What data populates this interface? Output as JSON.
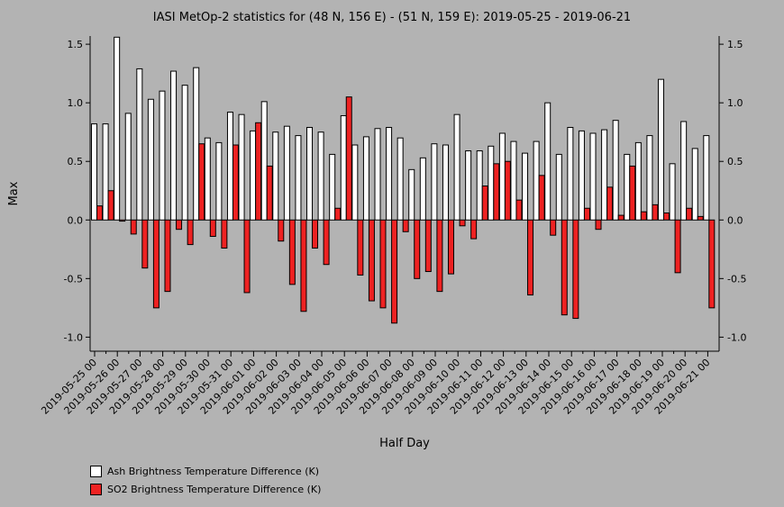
{
  "chart_data": {
    "type": "bar",
    "title": "IASI MetOp-2 statistics for (48 N, 156 E) - (51 N, 159 E): 2019-05-25 - 2019-06-21",
    "xlabel": "Half Day",
    "ylabel": "Max",
    "ylim": [
      -1.12,
      1.57
    ],
    "yticks": [
      -1.0,
      -0.5,
      0.0,
      0.5,
      1.0,
      1.5
    ],
    "ytick_labels": [
      "-1.0",
      "-0.5",
      "0.0",
      "0.5",
      "1.0",
      "1.5"
    ],
    "xtick_labels": [
      "2019-05-25 00",
      "2019-05-26 00",
      "2019-05-27 00",
      "2019-05-28 00",
      "2019-05-29 00",
      "2019-05-30 00",
      "2019-05-31 00",
      "2019-06-01 00",
      "2019-06-02 00",
      "2019-06-03 00",
      "2019-06-04 00",
      "2019-06-05 00",
      "2019-06-06 00",
      "2019-06-07 00",
      "2019-06-08 00",
      "2019-06-09 00",
      "2019-06-10 00",
      "2019-06-11 00",
      "2019-06-12 00",
      "2019-06-13 00",
      "2019-06-14 00",
      "2019-06-15 00",
      "2019-06-16 00",
      "2019-06-17 00",
      "2019-06-18 00",
      "2019-06-19 00",
      "2019-06-20 00",
      "2019-06-21 00"
    ],
    "legend_position": "bottom-left",
    "grid": false,
    "series": [
      {
        "name": "Ash Brightness Temperature Difference (K)",
        "color": "#ffffff",
        "values": [
          0.82,
          0.82,
          1.56,
          0.91,
          1.29,
          1.03,
          1.1,
          1.27,
          1.15,
          1.3,
          0.7,
          0.66,
          0.92,
          0.9,
          0.76,
          1.01,
          0.75,
          0.8,
          0.72,
          0.79,
          0.75,
          0.56,
          0.89,
          0.64,
          0.71,
          0.78,
          0.79,
          0.7,
          0.43,
          0.53,
          0.65,
          0.64,
          0.9,
          0.59,
          0.59,
          0.63,
          0.74,
          0.67,
          0.57,
          0.67,
          1.0,
          0.56,
          0.79,
          0.76,
          0.74,
          0.77,
          0.85,
          0.56,
          0.66,
          0.72,
          1.2,
          0.48,
          0.84,
          0.61,
          0.72
        ]
      },
      {
        "name": "SO2 Brightness Temperature Difference (K)",
        "color": "#ee2222",
        "values": [
          0.12,
          0.25,
          -0.01,
          -0.12,
          -0.41,
          -0.75,
          -0.61,
          -0.08,
          -0.21,
          0.65,
          -0.14,
          -0.24,
          0.64,
          -0.62,
          0.83,
          0.46,
          -0.18,
          -0.55,
          -0.78,
          -0.24,
          -0.38,
          0.1,
          1.05,
          -0.47,
          -0.69,
          -0.75,
          -0.88,
          -0.1,
          -0.5,
          -0.44,
          -0.61,
          -0.46,
          -0.05,
          -0.16,
          0.29,
          0.48,
          0.5,
          0.17,
          -0.64,
          0.38,
          -0.13,
          -0.81,
          -0.84,
          0.1,
          -0.08,
          0.28,
          0.04,
          0.46,
          0.07,
          0.13,
          0.06,
          -0.45,
          0.1,
          0.03,
          -0.75
        ]
      }
    ]
  }
}
